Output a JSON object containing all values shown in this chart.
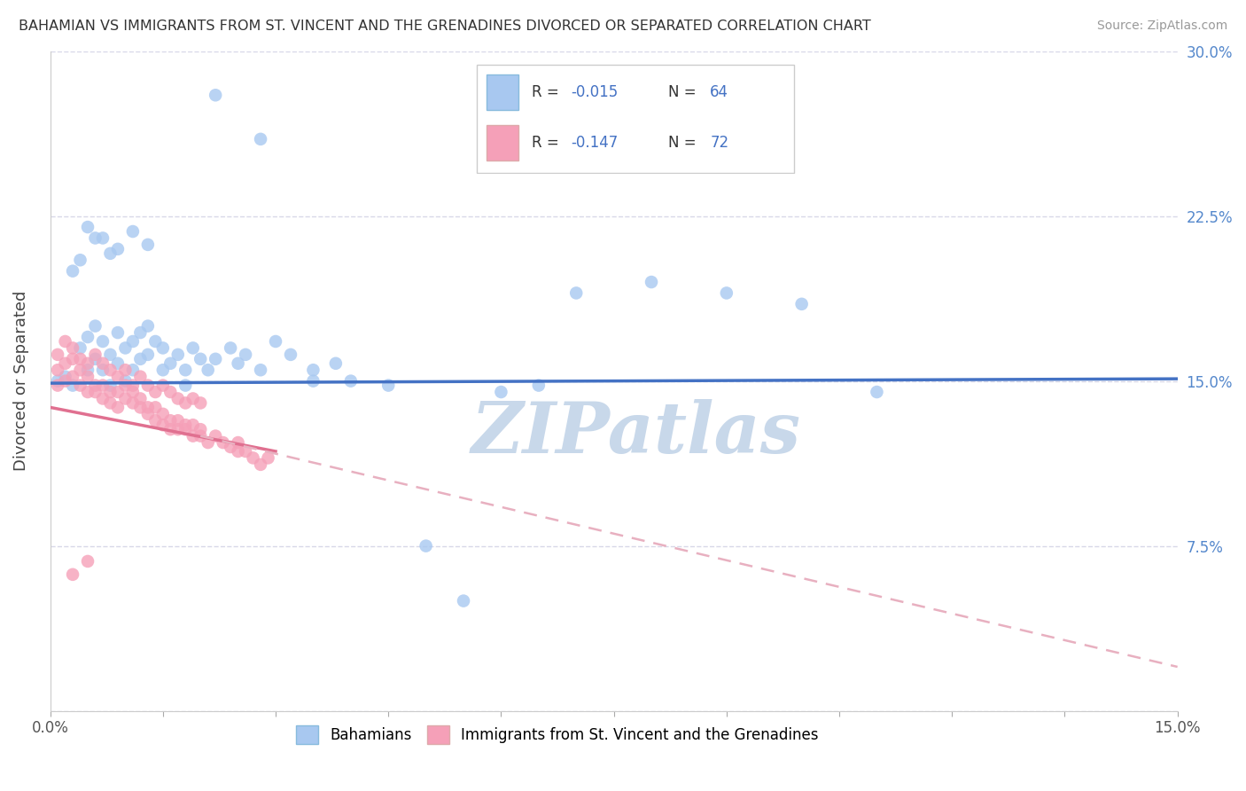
{
  "title": "BAHAMIAN VS IMMIGRANTS FROM ST. VINCENT AND THE GRENADINES DIVORCED OR SEPARATED CORRELATION CHART",
  "source": "Source: ZipAtlas.com",
  "xlabel_blue": "Bahamians",
  "xlabel_pink": "Immigrants from St. Vincent and the Grenadines",
  "ylabel": "Divorced or Separated",
  "xlim": [
    0.0,
    0.15
  ],
  "ylim": [
    0.0,
    0.3
  ],
  "xticks": [
    0.0,
    0.015,
    0.03,
    0.045,
    0.06,
    0.075,
    0.09,
    0.105,
    0.12,
    0.135,
    0.15
  ],
  "xticklabels_show": [
    "0.0%",
    "",
    "",
    "",
    "",
    "",
    "",
    "",
    "",
    "",
    "15.0%"
  ],
  "yticks": [
    0.0,
    0.075,
    0.15,
    0.225,
    0.3
  ],
  "yticklabels": [
    "",
    "7.5%",
    "15.0%",
    "22.5%",
    "30.0%"
  ],
  "color_blue": "#a8c8f0",
  "color_pink": "#f5a0b8",
  "color_blue_line": "#4472c4",
  "color_pink_line": "#e07090",
  "color_dashed": "#e8b0c0",
  "watermark": "ZIPatlas",
  "watermark_color": "#c8d8ea",
  "blue_line_start_y": 0.149,
  "blue_line_end_y": 0.151,
  "pink_line_start_y": 0.138,
  "pink_line_end_y": 0.02,
  "blue_x": [
    0.001,
    0.002,
    0.003,
    0.004,
    0.005,
    0.005,
    0.006,
    0.006,
    0.007,
    0.007,
    0.008,
    0.008,
    0.009,
    0.009,
    0.01,
    0.01,
    0.011,
    0.011,
    0.012,
    0.012,
    0.013,
    0.013,
    0.014,
    0.015,
    0.015,
    0.016,
    0.017,
    0.018,
    0.019,
    0.02,
    0.021,
    0.022,
    0.024,
    0.025,
    0.026,
    0.028,
    0.03,
    0.032,
    0.035,
    0.038,
    0.04,
    0.005,
    0.007,
    0.009,
    0.011,
    0.013,
    0.003,
    0.004,
    0.006,
    0.008,
    0.05,
    0.055,
    0.06,
    0.065,
    0.07,
    0.08,
    0.09,
    0.1,
    0.11,
    0.018,
    0.022,
    0.028,
    0.035,
    0.045
  ],
  "blue_y": [
    0.15,
    0.152,
    0.148,
    0.165,
    0.17,
    0.155,
    0.175,
    0.16,
    0.168,
    0.155,
    0.162,
    0.148,
    0.172,
    0.158,
    0.165,
    0.15,
    0.168,
    0.155,
    0.172,
    0.16,
    0.175,
    0.162,
    0.168,
    0.155,
    0.165,
    0.158,
    0.162,
    0.155,
    0.165,
    0.16,
    0.155,
    0.16,
    0.165,
    0.158,
    0.162,
    0.155,
    0.168,
    0.162,
    0.155,
    0.158,
    0.15,
    0.22,
    0.215,
    0.21,
    0.218,
    0.212,
    0.2,
    0.205,
    0.215,
    0.208,
    0.075,
    0.05,
    0.145,
    0.148,
    0.19,
    0.195,
    0.19,
    0.185,
    0.145,
    0.148,
    0.28,
    0.26,
    0.15,
    0.148
  ],
  "pink_x": [
    0.001,
    0.001,
    0.002,
    0.002,
    0.003,
    0.003,
    0.004,
    0.004,
    0.005,
    0.005,
    0.006,
    0.006,
    0.007,
    0.007,
    0.008,
    0.008,
    0.009,
    0.009,
    0.01,
    0.01,
    0.011,
    0.011,
    0.012,
    0.012,
    0.013,
    0.013,
    0.014,
    0.014,
    0.015,
    0.015,
    0.016,
    0.016,
    0.017,
    0.017,
    0.018,
    0.018,
    0.019,
    0.019,
    0.02,
    0.02,
    0.021,
    0.022,
    0.023,
    0.024,
    0.025,
    0.025,
    0.026,
    0.027,
    0.028,
    0.029,
    0.001,
    0.002,
    0.003,
    0.004,
    0.005,
    0.006,
    0.007,
    0.008,
    0.009,
    0.01,
    0.011,
    0.012,
    0.013,
    0.014,
    0.015,
    0.016,
    0.017,
    0.018,
    0.019,
    0.02,
    0.003,
    0.005
  ],
  "pink_y": [
    0.148,
    0.155,
    0.15,
    0.158,
    0.152,
    0.16,
    0.155,
    0.148,
    0.145,
    0.152,
    0.148,
    0.145,
    0.142,
    0.148,
    0.145,
    0.14,
    0.138,
    0.145,
    0.142,
    0.148,
    0.145,
    0.14,
    0.138,
    0.142,
    0.138,
    0.135,
    0.132,
    0.138,
    0.135,
    0.13,
    0.128,
    0.132,
    0.128,
    0.132,
    0.13,
    0.128,
    0.125,
    0.13,
    0.128,
    0.125,
    0.122,
    0.125,
    0.122,
    0.12,
    0.118,
    0.122,
    0.118,
    0.115,
    0.112,
    0.115,
    0.162,
    0.168,
    0.165,
    0.16,
    0.158,
    0.162,
    0.158,
    0.155,
    0.152,
    0.155,
    0.148,
    0.152,
    0.148,
    0.145,
    0.148,
    0.145,
    0.142,
    0.14,
    0.142,
    0.14,
    0.062,
    0.068
  ]
}
